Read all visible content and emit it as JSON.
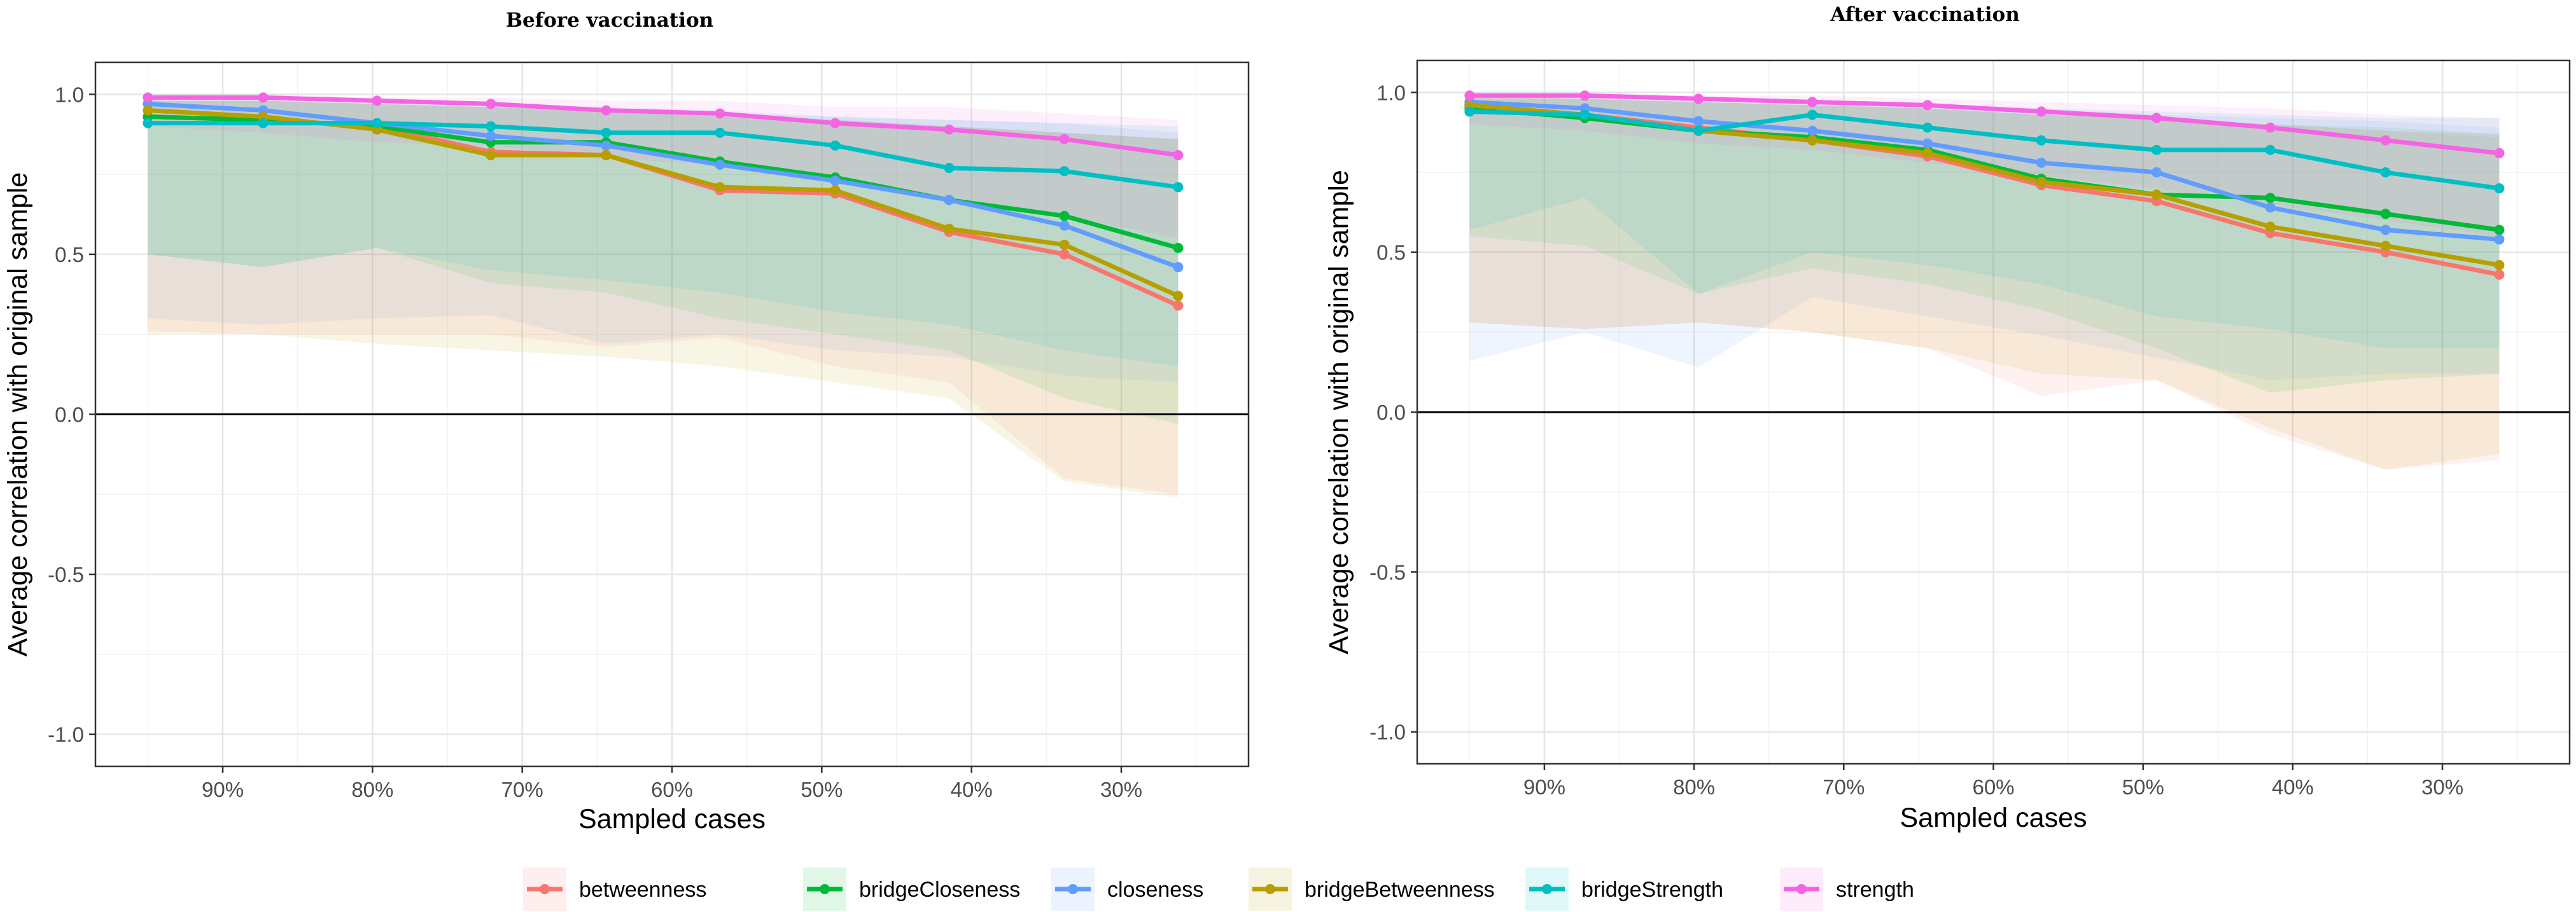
{
  "chart_data": [
    {
      "type": "line",
      "title": "Before vaccination",
      "xlabel": "Sampled cases",
      "ylabel": "Average correlation with original sample",
      "ylim": [
        -1.1,
        1.1
      ],
      "yticks": [
        -1.0,
        -0.5,
        0.0,
        0.5,
        1.0
      ],
      "ytick_labels": [
        "-1.0",
        "-0.5",
        "0.0",
        "0.5",
        "1.0"
      ],
      "xlim": [
        98.5,
        21.5
      ],
      "xticks": [
        90,
        80,
        70,
        60,
        50,
        40,
        30
      ],
      "xtick_labels": [
        "90%",
        "80%",
        "70%",
        "60%",
        "50%",
        "40%",
        "30%"
      ],
      "x": [
        95,
        87.3,
        79.7,
        72.1,
        64.4,
        56.8,
        49.1,
        41.5,
        33.8,
        26.2
      ],
      "series": [
        {
          "name": "betweenness",
          "values": [
            0.93,
            0.92,
            0.9,
            0.82,
            0.81,
            0.7,
            0.69,
            0.57,
            0.5,
            0.34
          ],
          "lower": [
            0.26,
            0.25,
            0.25,
            0.25,
            0.21,
            0.24,
            0.15,
            0.1,
            -0.2,
            -0.25
          ],
          "upper": [
            0.98,
            0.98,
            0.97,
            0.96,
            0.95,
            0.94,
            0.92,
            0.9,
            0.88,
            0.86
          ]
        },
        {
          "name": "bridgeCloseness",
          "values": [
            0.93,
            0.92,
            0.9,
            0.85,
            0.85,
            0.79,
            0.74,
            0.67,
            0.62,
            0.52
          ],
          "lower": [
            0.5,
            0.46,
            0.52,
            0.41,
            0.38,
            0.3,
            0.25,
            0.2,
            0.05,
            -0.03
          ],
          "upper": [
            0.98,
            0.98,
            0.97,
            0.96,
            0.95,
            0.93,
            0.92,
            0.9,
            0.88,
            0.86
          ]
        },
        {
          "name": "closeness",
          "values": [
            0.97,
            0.95,
            0.91,
            0.87,
            0.84,
            0.78,
            0.73,
            0.67,
            0.59,
            0.46
          ],
          "lower": [
            0.3,
            0.28,
            0.3,
            0.31,
            0.22,
            0.25,
            0.2,
            0.18,
            0.12,
            0.1
          ],
          "upper": [
            0.99,
            0.99,
            0.98,
            0.97,
            0.96,
            0.95,
            0.93,
            0.92,
            0.91,
            0.88
          ]
        },
        {
          "name": "bridgeBetweenness",
          "values": [
            0.95,
            0.93,
            0.89,
            0.81,
            0.81,
            0.71,
            0.7,
            0.58,
            0.53,
            0.37
          ],
          "lower": [
            0.25,
            0.25,
            0.22,
            0.2,
            0.18,
            0.15,
            0.1,
            0.05,
            -0.21,
            -0.26
          ],
          "upper": [
            0.98,
            0.98,
            0.97,
            0.96,
            0.95,
            0.94,
            0.92,
            0.9,
            0.88,
            0.86
          ]
        },
        {
          "name": "bridgeStrength",
          "values": [
            0.91,
            0.91,
            0.91,
            0.9,
            0.88,
            0.88,
            0.84,
            0.77,
            0.76,
            0.71
          ],
          "lower": [
            0.5,
            0.46,
            0.52,
            0.45,
            0.42,
            0.38,
            0.32,
            0.28,
            0.2,
            0.15
          ],
          "upper": [
            0.98,
            0.98,
            0.97,
            0.96,
            0.95,
            0.94,
            0.93,
            0.92,
            0.91,
            0.9
          ]
        },
        {
          "name": "strength",
          "values": [
            0.99,
            0.99,
            0.98,
            0.97,
            0.95,
            0.94,
            0.91,
            0.89,
            0.86,
            0.81
          ],
          "lower": [
            0.9,
            0.88,
            0.85,
            0.84,
            0.8,
            0.78,
            0.72,
            0.68,
            0.62,
            0.55
          ],
          "upper": [
            1.0,
            1.0,
            0.99,
            0.99,
            0.98,
            0.98,
            0.96,
            0.96,
            0.94,
            0.92
          ]
        }
      ]
    },
    {
      "type": "line",
      "title": "After vaccination",
      "xlabel": "Sampled cases",
      "ylabel": "Average correlation with original sample",
      "ylim": [
        -1.1,
        1.1
      ],
      "yticks": [
        -1.0,
        -0.5,
        0.0,
        0.5,
        1.0
      ],
      "ytick_labels": [
        "-1.0",
        "-0.5",
        "0.0",
        "0.5",
        "1.0"
      ],
      "xlim": [
        98.5,
        21.5
      ],
      "xticks": [
        90,
        80,
        70,
        60,
        50,
        40,
        30
      ],
      "xtick_labels": [
        "90%",
        "80%",
        "70%",
        "60%",
        "50%",
        "40%",
        "30%"
      ],
      "x": [
        95,
        87.3,
        79.7,
        72.1,
        64.4,
        56.8,
        49.1,
        41.5,
        33.8,
        26.2
      ],
      "series": [
        {
          "name": "betweenness",
          "values": [
            0.96,
            0.93,
            0.89,
            0.85,
            0.8,
            0.71,
            0.66,
            0.56,
            0.5,
            0.43
          ],
          "lower": [
            0.28,
            0.26,
            0.28,
            0.25,
            0.2,
            0.05,
            0.1,
            -0.07,
            -0.18,
            -0.15
          ],
          "upper": [
            0.99,
            0.98,
            0.97,
            0.96,
            0.95,
            0.93,
            0.92,
            0.9,
            0.88,
            0.86
          ]
        },
        {
          "name": "bridgeCloseness",
          "values": [
            0.95,
            0.92,
            0.88,
            0.86,
            0.82,
            0.73,
            0.68,
            0.67,
            0.62,
            0.57
          ],
          "lower": [
            0.55,
            0.52,
            0.37,
            0.45,
            0.4,
            0.32,
            0.2,
            0.06,
            0.1,
            0.12
          ],
          "upper": [
            0.99,
            0.98,
            0.97,
            0.96,
            0.95,
            0.93,
            0.92,
            0.9,
            0.89,
            0.87
          ]
        },
        {
          "name": "closeness",
          "values": [
            0.97,
            0.95,
            0.91,
            0.88,
            0.84,
            0.78,
            0.75,
            0.64,
            0.57,
            0.54
          ],
          "lower": [
            0.16,
            0.25,
            0.14,
            0.36,
            0.3,
            0.24,
            0.17,
            0.1,
            0.12,
            0.12
          ],
          "upper": [
            0.99,
            0.99,
            0.98,
            0.97,
            0.96,
            0.95,
            0.93,
            0.92,
            0.91,
            0.89
          ]
        },
        {
          "name": "bridgeBetweenness",
          "values": [
            0.96,
            0.93,
            0.88,
            0.85,
            0.81,
            0.72,
            0.68,
            0.58,
            0.52,
            0.46
          ],
          "lower": [
            0.28,
            0.26,
            0.28,
            0.25,
            0.2,
            0.12,
            0.1,
            -0.05,
            -0.18,
            -0.13
          ],
          "upper": [
            0.99,
            0.98,
            0.97,
            0.96,
            0.95,
            0.93,
            0.92,
            0.9,
            0.88,
            0.87
          ]
        },
        {
          "name": "bridgeStrength",
          "values": [
            0.94,
            0.93,
            0.88,
            0.93,
            0.89,
            0.85,
            0.82,
            0.82,
            0.75,
            0.7
          ],
          "lower": [
            0.57,
            0.67,
            0.37,
            0.5,
            0.46,
            0.4,
            0.3,
            0.26,
            0.2,
            0.2
          ],
          "upper": [
            0.98,
            0.98,
            0.97,
            0.96,
            0.96,
            0.95,
            0.94,
            0.93,
            0.92,
            0.92
          ]
        },
        {
          "name": "strength",
          "values": [
            0.99,
            0.99,
            0.98,
            0.97,
            0.96,
            0.94,
            0.92,
            0.89,
            0.85,
            0.81
          ],
          "lower": [
            0.9,
            0.88,
            0.84,
            0.82,
            0.78,
            0.74,
            0.7,
            0.65,
            0.6,
            0.55
          ],
          "upper": [
            1.0,
            1.0,
            0.99,
            0.99,
            0.98,
            0.97,
            0.96,
            0.95,
            0.93,
            0.92
          ]
        }
      ]
    }
  ],
  "colors": {
    "betweenness": "#F8766D",
    "bridgeCloseness": "#00BA38",
    "closeness": "#619CFF",
    "bridgeBetweenness": "#B79F00",
    "bridgeStrength": "#00BFC4",
    "strength": "#F564E3"
  },
  "legend": {
    "items": [
      {
        "label": "betweenness",
        "color_key": "betweenness"
      },
      {
        "label": "bridgeCloseness",
        "color_key": "bridgeCloseness"
      },
      {
        "label": "closeness",
        "color_key": "closeness"
      },
      {
        "label": "bridgeBetweenness",
        "color_key": "bridgeBetweenness"
      },
      {
        "label": "bridgeStrength",
        "color_key": "bridgeStrength"
      },
      {
        "label": "strength",
        "color_key": "strength"
      }
    ]
  }
}
